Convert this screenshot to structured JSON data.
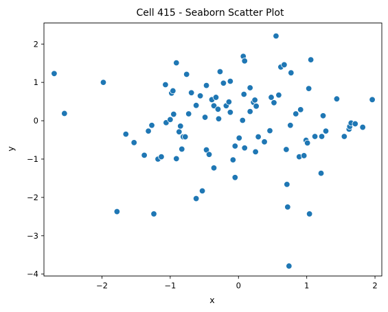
{
  "chart_data": {
    "type": "scatter",
    "title": "Cell 415 - Seaborn Scatter Plot",
    "xlabel": "x",
    "ylabel": "y",
    "xlim": [
      -2.85,
      2.1
    ],
    "ylim": [
      -4.05,
      2.55
    ],
    "xticks": [
      -2,
      -1,
      0,
      1,
      2
    ],
    "yticks": [
      -4,
      -3,
      -2,
      -1,
      0,
      1,
      2
    ],
    "xtick_labels": [
      "−2",
      "−1",
      "0",
      "1",
      "2"
    ],
    "ytick_labels": [
      "−4",
      "−3",
      "−2",
      "−1",
      "0",
      "1",
      "2"
    ],
    "grid": false,
    "marker_color": "#1f77b4",
    "points": [
      [
        -2.7,
        1.23
      ],
      [
        -2.55,
        0.19
      ],
      [
        -1.98,
        1.0
      ],
      [
        -1.78,
        -2.37
      ],
      [
        -1.65,
        -0.35
      ],
      [
        -1.53,
        -0.57
      ],
      [
        -1.38,
        -0.9
      ],
      [
        -1.32,
        -0.27
      ],
      [
        -1.27,
        -0.12
      ],
      [
        -1.24,
        -2.43
      ],
      [
        -1.18,
        -1.0
      ],
      [
        -1.13,
        -0.94
      ],
      [
        -1.07,
        0.94
      ],
      [
        -1.06,
        -0.05
      ],
      [
        -1.0,
        0.03
      ],
      [
        -0.98,
        0.72
      ],
      [
        -0.96,
        0.78
      ],
      [
        -0.95,
        0.17
      ],
      [
        -0.91,
        1.51
      ],
      [
        -0.91,
        -0.99
      ],
      [
        -0.87,
        -0.29
      ],
      [
        -0.85,
        -0.14
      ],
      [
        -0.83,
        -0.74
      ],
      [
        -0.81,
        -0.42
      ],
      [
        -0.78,
        -0.42
      ],
      [
        -0.76,
        1.21
      ],
      [
        -0.73,
        0.18
      ],
      [
        -0.69,
        0.73
      ],
      [
        -0.62,
        0.4
      ],
      [
        -0.62,
        -2.03
      ],
      [
        -0.56,
        0.65
      ],
      [
        -0.53,
        -1.83
      ],
      [
        -0.49,
        0.09
      ],
      [
        -0.47,
        0.92
      ],
      [
        -0.47,
        -0.76
      ],
      [
        -0.43,
        -0.88
      ],
      [
        -0.39,
        0.55
      ],
      [
        -0.36,
        0.39
      ],
      [
        -0.36,
        -1.23
      ],
      [
        -0.33,
        0.61
      ],
      [
        -0.3,
        0.3
      ],
      [
        -0.29,
        0.05
      ],
      [
        -0.27,
        1.28
      ],
      [
        -0.22,
        0.98
      ],
      [
        -0.18,
        0.39
      ],
      [
        -0.14,
        0.49
      ],
      [
        -0.12,
        1.03
      ],
      [
        -0.12,
        0.22
      ],
      [
        -0.08,
        -1.02
      ],
      [
        -0.05,
        -0.66
      ],
      [
        -0.05,
        -1.48
      ],
      [
        0.01,
        -0.45
      ],
      [
        0.06,
        0.01
      ],
      [
        0.07,
        1.68
      ],
      [
        0.08,
        0.69
      ],
      [
        0.09,
        1.56
      ],
      [
        0.09,
        -0.71
      ],
      [
        0.17,
        0.86
      ],
      [
        0.17,
        0.24
      ],
      [
        0.22,
        0.48
      ],
      [
        0.24,
        0.54
      ],
      [
        0.25,
        -0.81
      ],
      [
        0.26,
        0.38
      ],
      [
        0.29,
        -0.42
      ],
      [
        0.38,
        -0.55
      ],
      [
        0.46,
        -0.26
      ],
      [
        0.48,
        0.61
      ],
      [
        0.52,
        0.47
      ],
      [
        0.55,
        2.21
      ],
      [
        0.59,
        0.67
      ],
      [
        0.62,
        1.4
      ],
      [
        0.67,
        1.46
      ],
      [
        0.7,
        -0.75
      ],
      [
        0.71,
        -1.66
      ],
      [
        0.72,
        -2.25
      ],
      [
        0.74,
        -3.79
      ],
      [
        0.76,
        -0.12
      ],
      [
        0.77,
        1.25
      ],
      [
        0.84,
        0.18
      ],
      [
        0.89,
        -0.94
      ],
      [
        0.91,
        0.29
      ],
      [
        0.96,
        -0.91
      ],
      [
        0.99,
        -0.51
      ],
      [
        1.01,
        -0.58
      ],
      [
        1.03,
        0.84
      ],
      [
        1.04,
        -2.43
      ],
      [
        1.06,
        1.59
      ],
      [
        1.12,
        -0.41
      ],
      [
        1.21,
        -1.37
      ],
      [
        1.22,
        -0.41
      ],
      [
        1.24,
        0.13
      ],
      [
        1.28,
        -0.27
      ],
      [
        1.44,
        0.57
      ],
      [
        1.55,
        -0.41
      ],
      [
        1.62,
        -0.22
      ],
      [
        1.63,
        -0.15
      ],
      [
        1.65,
        -0.06
      ],
      [
        1.71,
        -0.08
      ],
      [
        1.82,
        -0.17
      ],
      [
        1.96,
        0.55
      ]
    ]
  }
}
